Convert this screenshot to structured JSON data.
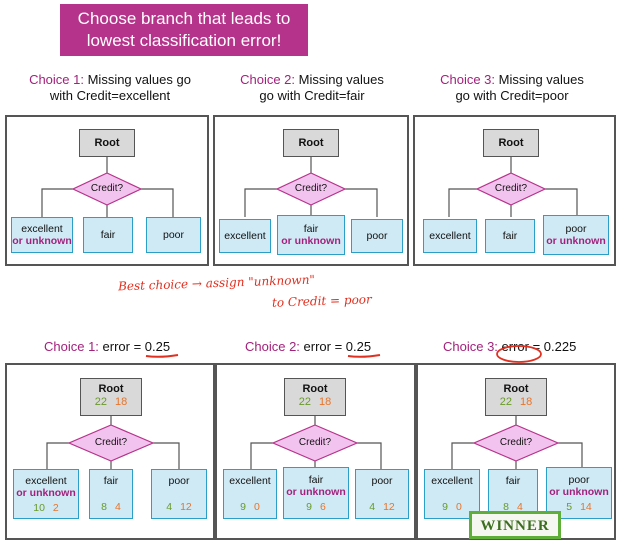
{
  "banner": {
    "line1": "Choose branch that leads to",
    "line2": "lowest classification error!"
  },
  "choices": [
    {
      "label": "Choice 1:",
      "line1_rest": " Missing values go",
      "line2": "with Credit=excellent"
    },
    {
      "label": "Choice 2:",
      "line1_rest": " Missing values",
      "line2": "go with Credit=fair"
    },
    {
      "label": "Choice 3:",
      "line1_rest": " Missing values",
      "line2": "go with Credit=poor"
    }
  ],
  "tree": {
    "root": "Root",
    "split": "Credit?"
  },
  "top_trees": [
    {
      "leaves": [
        {
          "name": "excellent",
          "unknown": "or unknown"
        },
        {
          "name": "fair",
          "unknown": ""
        },
        {
          "name": "poor",
          "unknown": ""
        }
      ]
    },
    {
      "leaves": [
        {
          "name": "excellent",
          "unknown": ""
        },
        {
          "name": "fair",
          "unknown": "or unknown"
        },
        {
          "name": "poor",
          "unknown": ""
        }
      ]
    },
    {
      "leaves": [
        {
          "name": "excellent",
          "unknown": ""
        },
        {
          "name": "fair",
          "unknown": ""
        },
        {
          "name": "poor",
          "unknown": "or unknown"
        }
      ]
    }
  ],
  "handnote": {
    "line1": "Best choice → assign \"unknown\"",
    "line2": "to Credit = poor"
  },
  "errors": [
    {
      "label": "Choice 1:",
      "text": " error = ",
      "value": "0.25"
    },
    {
      "label": "Choice 2:",
      "text": " error = ",
      "value": "0.25"
    },
    {
      "label": "Choice 3:",
      "text": " error = ",
      "value": "0.225"
    }
  ],
  "bottom_trees": [
    {
      "root_counts": [
        "22",
        "18"
      ],
      "leaves": [
        {
          "name": "excellent",
          "unknown": "or unknown",
          "counts": [
            "10",
            "2"
          ]
        },
        {
          "name": "fair",
          "unknown": "",
          "counts": [
            "8",
            "4"
          ]
        },
        {
          "name": "poor",
          "unknown": "",
          "counts": [
            "4",
            "12"
          ]
        }
      ]
    },
    {
      "root_counts": [
        "22",
        "18"
      ],
      "leaves": [
        {
          "name": "excellent",
          "unknown": "",
          "counts": [
            "9",
            "0"
          ]
        },
        {
          "name": "fair",
          "unknown": "or unknown",
          "counts": [
            "9",
            "6"
          ]
        },
        {
          "name": "poor",
          "unknown": "",
          "counts": [
            "4",
            "12"
          ]
        }
      ]
    },
    {
      "root_counts": [
        "22",
        "18"
      ],
      "leaves": [
        {
          "name": "excellent",
          "unknown": "",
          "counts": [
            "9",
            "0"
          ]
        },
        {
          "name": "fair",
          "unknown": "",
          "counts": [
            "8",
            "4"
          ]
        },
        {
          "name": "poor",
          "unknown": "or unknown",
          "counts": [
            "5",
            "14"
          ]
        }
      ]
    }
  ],
  "winner": "WINNER",
  "colors": {
    "magenta": "#b5338a",
    "leaf_fill": "#cfeaf5",
    "leaf_border": "#2aa0c8",
    "diamond_fill": "#f3c3ef",
    "diamond_border": "#b5338a",
    "ink": "#e03020",
    "positive": "#6a9a2a",
    "negative": "#e8742a",
    "winner_border": "#5fae3a"
  }
}
